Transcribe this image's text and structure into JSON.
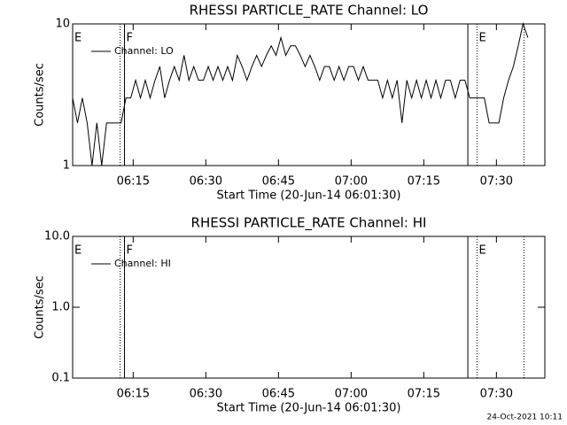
{
  "chart_data": [
    {
      "type": "line",
      "title": "RHESSI PARTICLE_RATE Channel: LO",
      "xlabel": "Start Time (20-Jun-14 06:01:30)",
      "ylabel": "Counts/sec",
      "x": [
        2.5,
        3.5,
        4.5,
        5.5,
        6.5,
        7.5,
        8.5,
        9.5,
        10.5,
        11.5,
        12.5,
        13.5,
        14.5,
        15.5,
        16.5,
        17.5,
        18.5,
        19.5,
        20.5,
        21.5,
        22.5,
        23.5,
        24.5,
        25.5,
        26.5,
        27.5,
        28.5,
        29.5,
        30.5,
        31.5,
        32.5,
        33.5,
        34.5,
        35.5,
        36.5,
        37.5,
        38.5,
        39.5,
        40.5,
        41.5,
        42.5,
        43.5,
        44.5,
        45.5,
        46.5,
        47.5,
        48.5,
        49.5,
        50.5,
        51.5,
        52.5,
        53.5,
        54.5,
        55.5,
        56.5,
        57.5,
        58.5,
        59.5,
        60.5,
        61.5,
        62.5,
        63.5,
        64.5,
        65.5,
        66.5,
        67.5,
        68.5,
        69.5,
        70.5,
        71.5,
        72.5,
        73.5,
        74.5,
        75.5,
        76.5,
        77.5,
        78.5,
        79.5,
        80.5,
        81.5,
        82.5,
        83.5,
        84.5,
        85.5,
        86.5,
        87.5,
        88.5,
        89.5,
        90.5,
        91.5,
        92.5,
        93.5,
        94.5,
        95.5,
        96.5
      ],
      "series": [
        {
          "name": "Channel: LO",
          "color": "#000000",
          "values": [
            3,
            2,
            3,
            2,
            1,
            2,
            1,
            2,
            2,
            2,
            2,
            3,
            3,
            4,
            3,
            4,
            3,
            4,
            5,
            3,
            4,
            5,
            4,
            6,
            4,
            5,
            4,
            4,
            5,
            4,
            5,
            4,
            5,
            4,
            6,
            5,
            4,
            5,
            6,
            5,
            6,
            7,
            6,
            8,
            6,
            7,
            7,
            6,
            5,
            6,
            5,
            4,
            5,
            5,
            4,
            5,
            4,
            5,
            5,
            4,
            5,
            4,
            4,
            4,
            3,
            4,
            3,
            4,
            2,
            4,
            3,
            4,
            3,
            4,
            3,
            4,
            3,
            4,
            4,
            3,
            4,
            4,
            3,
            3,
            3,
            3,
            2,
            2,
            2,
            3,
            4,
            5,
            7,
            10,
            8
          ]
        }
      ],
      "xlim": [
        2.5,
        100
      ],
      "xticks": [
        {
          "value": 15,
          "label": "06:15"
        },
        {
          "value": 30,
          "label": "06:30"
        },
        {
          "value": 45,
          "label": "06:45"
        },
        {
          "value": 60,
          "label": "07:00"
        },
        {
          "value": 75,
          "label": "07:15"
        },
        {
          "value": 90,
          "label": "07:30"
        }
      ],
      "ylim": [
        1,
        10
      ],
      "yticks": [
        1,
        10
      ],
      "log_y": true,
      "annotations": [
        {
          "text": "E",
          "x": 2.5
        },
        {
          "text": "F",
          "x": 13.2
        },
        {
          "text": "E",
          "x": 86
        }
      ],
      "vlines": [
        {
          "x": 12.3,
          "style": "dotted"
        },
        {
          "x": 13.2,
          "style": "solid"
        },
        {
          "x": 84.1,
          "style": "solid"
        },
        {
          "x": 86,
          "style": "dotted"
        },
        {
          "x": 95.7,
          "style": "dotted"
        }
      ]
    },
    {
      "type": "line",
      "title": "RHESSI PARTICLE_RATE Channel: HI",
      "xlabel": "Start Time (20-Jun-14 06:01:30)",
      "ylabel": "Counts/sec",
      "x": [],
      "series": [
        {
          "name": "Channel: HI",
          "color": "#000000",
          "values": []
        }
      ],
      "xlim": [
        2.5,
        100
      ],
      "xticks": [
        {
          "value": 15,
          "label": "06:15"
        },
        {
          "value": 30,
          "label": "06:30"
        },
        {
          "value": 45,
          "label": "06:45"
        },
        {
          "value": 60,
          "label": "07:00"
        },
        {
          "value": 75,
          "label": "07:15"
        },
        {
          "value": 90,
          "label": "07:30"
        }
      ],
      "ylim": [
        0.1,
        10
      ],
      "yticks": [
        0.1,
        {
          "value": 1,
          "label": "1.0"
        },
        {
          "value": 10,
          "label": "10.0"
        }
      ],
      "log_y": true,
      "annotations": [
        {
          "text": "E",
          "x": 2.5
        },
        {
          "text": "F",
          "x": 13.2
        },
        {
          "text": "E",
          "x": 86
        }
      ],
      "vlines": [
        {
          "x": 12.3,
          "style": "dotted"
        },
        {
          "x": 13.2,
          "style": "solid"
        },
        {
          "x": 84.1,
          "style": "solid"
        },
        {
          "x": 86,
          "style": "dotted"
        },
        {
          "x": 95.7,
          "style": "dotted"
        }
      ]
    }
  ],
  "footer": "24-Oct-2021 10:11"
}
